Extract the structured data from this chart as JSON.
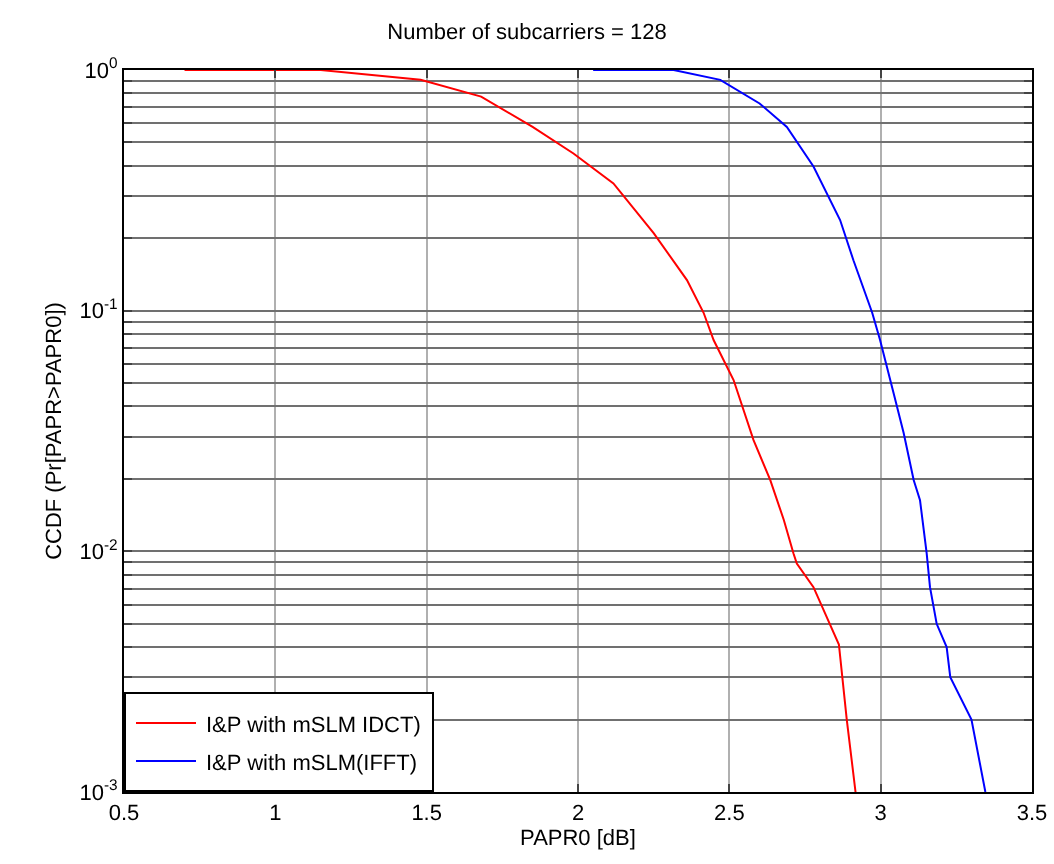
{
  "chart_data": {
    "type": "line",
    "title": "Number of subcarriers = 128",
    "xlabel": "PAPR0 [dB]",
    "ylabel": "CCDF (Pr[PAPR>PAPR0])",
    "series": [
      {
        "name": "I&P with mSLM IDCT)",
        "color": "#ff0000",
        "x": [
          0.7,
          1.15,
          1.48,
          1.68,
          1.85,
          1.985,
          2.117,
          2.25,
          2.36,
          2.415,
          2.448,
          2.514,
          2.58,
          2.635,
          2.68,
          2.712,
          2.723,
          2.778,
          2.862,
          2.888,
          2.917
        ],
        "values": [
          1,
          1,
          0.91,
          0.775,
          0.58,
          0.45,
          0.338,
          0.21,
          0.134,
          0.098,
          0.0755,
          0.0515,
          0.029,
          0.0198,
          0.0135,
          0.0098,
          0.0089,
          0.0071,
          0.0041,
          0.002,
          0.001
        ]
      },
      {
        "name": "I&P with mSLM(IFFT)",
        "color": "#0000ff",
        "x": [
          2.05,
          2.316,
          2.47,
          2.6,
          2.69,
          2.778,
          2.866,
          2.91,
          2.972,
          2.998,
          3.043,
          3.076,
          3.109,
          3.13,
          3.152,
          3.163,
          3.185,
          3.218,
          3.23,
          3.3,
          3.346
        ],
        "values": [
          1,
          1,
          0.91,
          0.726,
          0.58,
          0.397,
          0.238,
          0.162,
          0.098,
          0.0755,
          0.0453,
          0.031,
          0.0198,
          0.0163,
          0.0098,
          0.0071,
          0.005,
          0.004,
          0.003,
          0.002,
          0.001
        ]
      }
    ],
    "xlim": [
      0.5,
      3.5
    ],
    "xticks": [
      0.5,
      1,
      1.5,
      2,
      2.5,
      3,
      3.5
    ],
    "ylim": [
      0.001,
      1
    ],
    "log": true,
    "yticks": [
      {
        "value": 0.001,
        "label": "10$^{-3}$"
      },
      {
        "value": 0.002,
        "label": null
      },
      {
        "value": 0.003,
        "label": null
      },
      {
        "value": 0.004,
        "label": null
      },
      {
        "value": 0.005,
        "label": null
      },
      {
        "value": 0.006,
        "label": null
      },
      {
        "value": 0.007,
        "label": null
      },
      {
        "value": 0.008,
        "label": null
      },
      {
        "value": 0.009,
        "label": null
      },
      {
        "value": 0.01,
        "label": "10$^{-2}$"
      },
      {
        "value": 0.02,
        "label": null
      },
      {
        "value": 0.03,
        "label": null
      },
      {
        "value": 0.04,
        "label": null
      },
      {
        "value": 0.05,
        "label": null
      },
      {
        "value": 0.06,
        "label": null
      },
      {
        "value": 0.07,
        "label": null
      },
      {
        "value": 0.08,
        "label": null
      },
      {
        "value": 0.09,
        "label": null
      },
      {
        "value": 0.1,
        "label": "10$^{-1}$"
      },
      {
        "value": 0.2,
        "label": null
      },
      {
        "value": 0.3,
        "label": null
      },
      {
        "value": 0.4,
        "label": null
      },
      {
        "value": 0.5,
        "label": null
      },
      {
        "value": 0.6,
        "label": null
      },
      {
        "value": 0.7,
        "label": null
      },
      {
        "value": 0.8,
        "label": null
      },
      {
        "value": 0.9,
        "label": null
      },
      {
        "value": 1,
        "label": "10$^{0}$"
      }
    ],
    "grid": true,
    "legend": "bottom left"
  }
}
